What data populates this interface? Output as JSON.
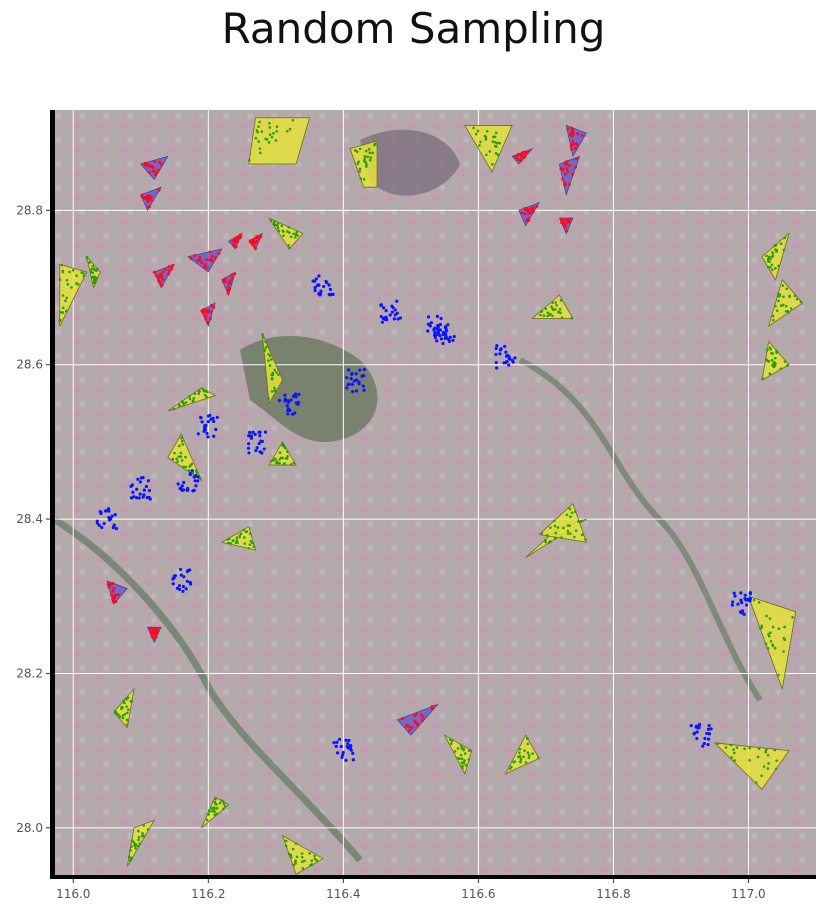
{
  "chart_data": {
    "type": "scatter",
    "title": "Random Sampling",
    "xlabel": "",
    "ylabel": "",
    "xlim": [
      115.97,
      117.1
    ],
    "ylim": [
      27.935,
      28.93
    ],
    "xticks": [
      116.0,
      116.2,
      116.4,
      116.6,
      116.8,
      117.0
    ],
    "yticks": [
      28.0,
      28.2,
      28.4,
      28.6,
      28.8
    ],
    "xtick_labels": [
      "116.0",
      "116.2",
      "116.4",
      "116.6",
      "116.8",
      "117.0"
    ],
    "ytick_labels": [
      "28.0",
      "28.2",
      "28.4",
      "28.6",
      "28.8"
    ],
    "grid": true,
    "legend": "none",
    "background": "satellite imagery",
    "colors": {
      "yellow_polygon_fill": "#e4e23a",
      "yellow_polygon_edge": "#6b6b1c",
      "green_points": "#2a9d0a",
      "purple_polygon_fill": "#6a5acd",
      "red_points": "#ff0a1a",
      "blue_points": "#0a14ff",
      "grid": "#ffffff"
    },
    "series": [
      {
        "style": "yellow-polygons-green-points",
        "polygons": [
          [
            [
              116.27,
              28.92
            ],
            [
              116.35,
              28.92
            ],
            [
              116.33,
              28.86
            ],
            [
              116.26,
              28.86
            ]
          ],
          [
            [
              116.41,
              28.88
            ],
            [
              116.45,
              28.89
            ],
            [
              116.45,
              28.83
            ],
            [
              116.43,
              28.83
            ]
          ],
          [
            [
              115.98,
              28.73
            ],
            [
              116.02,
              28.72
            ],
            [
              115.98,
              28.65
            ]
          ],
          [
            [
              116.02,
              28.74
            ],
            [
              116.04,
              28.72
            ],
            [
              116.03,
              28.7
            ]
          ],
          [
            [
              116.29,
              28.79
            ],
            [
              116.32,
              28.75
            ],
            [
              116.34,
              28.77
            ]
          ],
          [
            [
              116.28,
              28.64
            ],
            [
              116.31,
              28.58
            ],
            [
              116.29,
              28.55
            ]
          ],
          [
            [
              116.14,
              28.54
            ],
            [
              116.19,
              28.57
            ],
            [
              116.21,
              28.56
            ]
          ],
          [
            [
              116.14,
              28.48
            ],
            [
              116.16,
              28.51
            ],
            [
              116.19,
              28.45
            ]
          ],
          [
            [
              116.31,
              28.5
            ],
            [
              116.33,
              28.47
            ],
            [
              116.29,
              28.47
            ]
          ],
          [
            [
              116.22,
              28.37
            ],
            [
              116.26,
              28.39
            ],
            [
              116.27,
              28.36
            ]
          ],
          [
            [
              116.58,
              28.91
            ],
            [
              116.65,
              28.91
            ],
            [
              116.62,
              28.85
            ]
          ],
          [
            [
              116.68,
              28.66
            ],
            [
              116.72,
              28.69
            ],
            [
              116.74,
              28.66
            ]
          ],
          [
            [
              116.72,
              28.39
            ],
            [
              116.67,
              28.35
            ],
            [
              116.76,
              28.4
            ]
          ],
          [
            [
              116.76,
              28.37
            ],
            [
              116.74,
              28.42
            ],
            [
              116.69,
              28.38
            ]
          ],
          [
            [
              117.02,
              28.74
            ],
            [
              117.06,
              28.77
            ],
            [
              117.04,
              28.71
            ]
          ],
          [
            [
              117.05,
              28.71
            ],
            [
              117.08,
              28.68
            ],
            [
              117.03,
              28.65
            ]
          ],
          [
            [
              117.03,
              28.63
            ],
            [
              117.06,
              28.6
            ],
            [
              117.02,
              28.58
            ]
          ],
          [
            [
              117.0,
              28.3
            ],
            [
              117.07,
              28.28
            ],
            [
              117.05,
              28.18
            ]
          ],
          [
            [
              116.95,
              28.11
            ],
            [
              117.02,
              28.05
            ],
            [
              117.06,
              28.1
            ]
          ],
          [
            [
              116.55,
              28.12
            ],
            [
              116.59,
              28.1
            ],
            [
              116.58,
              28.07
            ]
          ],
          [
            [
              116.64,
              28.07
            ],
            [
              116.69,
              28.09
            ],
            [
              116.67,
              28.12
            ]
          ],
          [
            [
              116.33,
              27.94
            ],
            [
              116.37,
              27.96
            ],
            [
              116.31,
              27.99
            ]
          ],
          [
            [
              116.06,
              28.15
            ],
            [
              116.09,
              28.18
            ],
            [
              116.08,
              28.13
            ]
          ],
          [
            [
              116.09,
              28.0
            ],
            [
              116.12,
              28.01
            ],
            [
              116.08,
              27.95
            ]
          ],
          [
            [
              116.19,
              28.0
            ],
            [
              116.21,
              28.04
            ],
            [
              116.23,
              28.03
            ]
          ]
        ],
        "points_per_polygon": 24
      },
      {
        "style": "purple-polygons-red-points",
        "polygons": [
          [
            [
              116.17,
              28.74
            ],
            [
              116.22,
              28.75
            ],
            [
              116.2,
              28.72
            ]
          ],
          [
            [
              116.23,
              28.76
            ],
            [
              116.25,
              28.77
            ],
            [
              116.24,
              28.75
            ]
          ],
          [
            [
              116.26,
              28.76
            ],
            [
              116.28,
              28.77
            ],
            [
              116.27,
              28.75
            ]
          ],
          [
            [
              116.12,
              28.72
            ],
            [
              116.15,
              28.73
            ],
            [
              116.13,
              28.7
            ]
          ],
          [
            [
              116.22,
              28.71
            ],
            [
              116.24,
              28.72
            ],
            [
              116.23,
              28.69
            ]
          ],
          [
            [
              116.19,
              28.67
            ],
            [
              116.21,
              28.68
            ],
            [
              116.2,
              28.65
            ]
          ],
          [
            [
              116.1,
              28.86
            ],
            [
              116.14,
              28.87
            ],
            [
              116.12,
              28.84
            ]
          ],
          [
            [
              116.1,
              28.82
            ],
            [
              116.13,
              28.83
            ],
            [
              116.11,
              28.8
            ]
          ],
          [
            [
              116.73,
              28.91
            ],
            [
              116.76,
              28.9
            ],
            [
              116.74,
              28.87
            ]
          ],
          [
            [
              116.72,
              28.86
            ],
            [
              116.75,
              28.87
            ],
            [
              116.73,
              28.82
            ]
          ],
          [
            [
              116.65,
              28.87
            ],
            [
              116.68,
              28.88
            ],
            [
              116.66,
              28.86
            ]
          ],
          [
            [
              116.66,
              28.8
            ],
            [
              116.69,
              28.81
            ],
            [
              116.67,
              28.78
            ]
          ],
          [
            [
              116.72,
              28.79
            ],
            [
              116.74,
              28.79
            ],
            [
              116.73,
              28.77
            ]
          ],
          [
            [
              116.48,
              28.14
            ],
            [
              116.54,
              28.16
            ],
            [
              116.5,
              28.12
            ]
          ],
          [
            [
              116.05,
              28.32
            ],
            [
              116.08,
              28.31
            ],
            [
              116.06,
              28.29
            ]
          ],
          [
            [
              116.11,
              28.26
            ],
            [
              116.13,
              28.26
            ],
            [
              116.12,
              28.24
            ]
          ]
        ],
        "points_per_polygon": 18
      },
      {
        "style": "blue-point-clusters",
        "clusters": [
          [
            116.42,
            28.58
          ],
          [
            116.32,
            28.55
          ],
          [
            116.27,
            28.5
          ],
          [
            116.2,
            28.52
          ],
          [
            116.17,
            28.45
          ],
          [
            116.1,
            28.44
          ],
          [
            116.05,
            28.4
          ],
          [
            116.16,
            28.32
          ],
          [
            116.47,
            28.67
          ],
          [
            116.55,
            28.64
          ],
          [
            116.64,
            28.61
          ],
          [
            116.37,
            28.7
          ],
          [
            116.99,
            28.29
          ],
          [
            116.4,
            28.1
          ],
          [
            116.93,
            28.12
          ],
          [
            116.54,
            28.65
          ]
        ],
        "points_per_cluster": 22
      }
    ]
  }
}
